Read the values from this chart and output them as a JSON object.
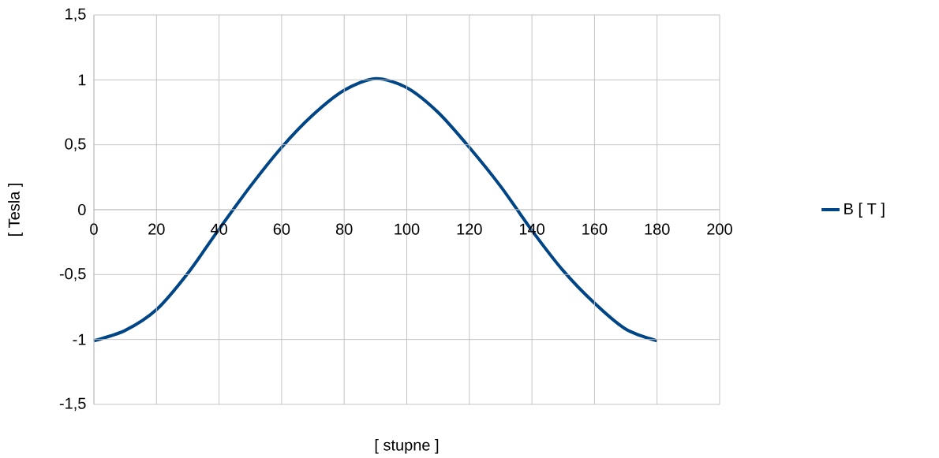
{
  "chart_data": {
    "type": "line",
    "xlabel": "[ stupne ]",
    "ylabel": "[ Tesla ]",
    "x": [
      0,
      10,
      20,
      30,
      40,
      50,
      60,
      70,
      80,
      90,
      100,
      110,
      120,
      130,
      140,
      150,
      160,
      170,
      180
    ],
    "series": [
      {
        "name": "B [ T ]",
        "color": "#004586",
        "values": [
          -1.01,
          -0.93,
          -0.77,
          -0.49,
          -0.15,
          0.18,
          0.48,
          0.73,
          0.92,
          1.01,
          0.94,
          0.75,
          0.48,
          0.18,
          -0.16,
          -0.47,
          -0.72,
          -0.92,
          -1.01
        ]
      }
    ],
    "xlim": [
      0,
      200
    ],
    "xticks": [
      0,
      20,
      40,
      60,
      80,
      100,
      120,
      140,
      160,
      180,
      200
    ],
    "ylim": [
      -1.5,
      1.5
    ],
    "yticks": [
      {
        "value": -1.5,
        "label": "-1,5"
      },
      {
        "value": -1,
        "label": "-1"
      },
      {
        "value": -0.5,
        "label": "-0,5"
      },
      {
        "value": 0,
        "label": "0"
      },
      {
        "value": 0.5,
        "label": "0,5"
      },
      {
        "value": 1,
        "label": "1"
      },
      {
        "value": 1.5,
        "label": "1,5"
      }
    ],
    "grid": true,
    "legend": "right",
    "marker": "none",
    "line_style": "solid"
  }
}
